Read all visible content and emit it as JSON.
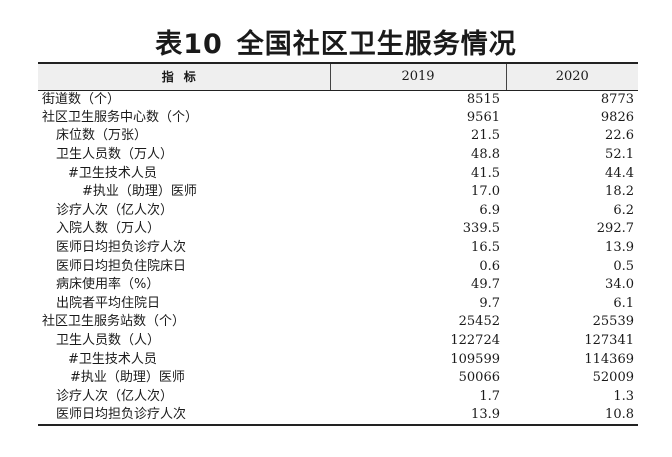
{
  "title": {
    "number": "表10",
    "text": "全国社区卫生服务情况"
  },
  "header": {
    "indicator": "指标",
    "year1": "2019",
    "year2": "2020"
  },
  "rows": [
    {
      "label": "街道数（个）",
      "v2019": "8515",
      "v2020": "8773"
    },
    {
      "label": "社区卫生服务中心数（个）",
      "v2019": "9561",
      "v2020": "9826"
    },
    {
      "label": "床位数（万张）",
      "v2019": "21.5",
      "v2020": "22.6"
    },
    {
      "label": "卫生人员数（万人）",
      "v2019": "48.8",
      "v2020": "52.1"
    },
    {
      "label": "#卫生技术人员",
      "v2019": "41.5",
      "v2020": "44.4"
    },
    {
      "label": "#执业（助理）医师",
      "v2019": "17.0",
      "v2020": "18.2"
    },
    {
      "label": "诊疗人次（亿人次）",
      "v2019": "6.9",
      "v2020": "6.2"
    },
    {
      "label": "入院人数（万人）",
      "v2019": "339.5",
      "v2020": "292.7"
    },
    {
      "label": "医师日均担负诊疗人次",
      "v2019": "16.5",
      "v2020": "13.9"
    },
    {
      "label": "医师日均担负住院床日",
      "v2019": "0.6",
      "v2020": "0.5"
    },
    {
      "label": "病床使用率（%）",
      "v2019": "49.7",
      "v2020": "34.0"
    },
    {
      "label": "出院者平均住院日",
      "v2019": "9.7",
      "v2020": "6.1"
    },
    {
      "label": "社区卫生服务站数（个）",
      "v2019": "25452",
      "v2020": "25539"
    },
    {
      "label": "卫生人员数（人）",
      "v2019": "122724",
      "v2020": "127341"
    },
    {
      "label": "#卫生技术人员",
      "v2019": "109599",
      "v2020": "114369"
    },
    {
      "label": "#执业（助理）医师",
      "v2019": "50066",
      "v2020": "52009"
    },
    {
      "label": "诊疗人次（亿人次）",
      "v2019": "1.7",
      "v2020": "1.3"
    },
    {
      "label": "医师日均担负诊疗人次",
      "v2019": "13.9",
      "v2020": "10.8"
    }
  ]
}
